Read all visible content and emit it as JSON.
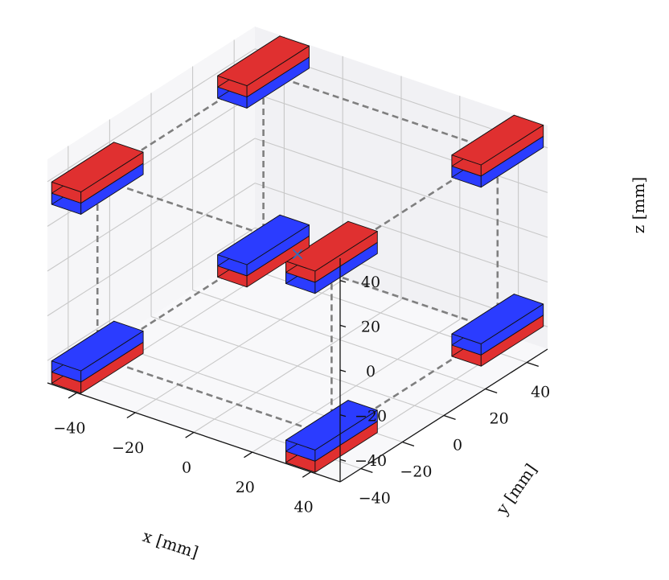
{
  "chart_data": {
    "type": "scatter",
    "projection": "3d",
    "title": "",
    "xlabel": "x [mm]",
    "ylabel": "y [mm]",
    "zlabel": "z [mm]",
    "xlim": [
      -50,
      50
    ],
    "ylim": [
      -50,
      50
    ],
    "zlim": [
      -50,
      50
    ],
    "xticks": [
      -40,
      -20,
      0,
      20,
      40
    ],
    "yticks": [
      -40,
      -20,
      0,
      20,
      40
    ],
    "zticks": [
      -40,
      -20,
      0,
      20,
      40
    ],
    "xtick_labels": [
      "−40",
      "−20",
      "0",
      "20",
      "40"
    ],
    "ytick_labels": [
      "−40",
      "−20",
      "0",
      "20",
      "40"
    ],
    "ztick_labels": [
      "−40",
      "−20",
      "0",
      "20",
      "40"
    ],
    "grid": true,
    "magnet_size": [
      10,
      30,
      10
    ],
    "magnets": [
      {
        "x": -40,
        "y": -40,
        "z": 40,
        "top_color": "#e03030"
      },
      {
        "x": 40,
        "y": -40,
        "z": 40,
        "top_color": "#e03030"
      },
      {
        "x": -40,
        "y": 40,
        "z": 40,
        "top_color": "#e03030"
      },
      {
        "x": 40,
        "y": 40,
        "z": 40,
        "top_color": "#e03030"
      },
      {
        "x": -40,
        "y": -40,
        "z": -40,
        "top_color": "#2b3cff"
      },
      {
        "x": 40,
        "y": -40,
        "z": -40,
        "top_color": "#2b3cff"
      },
      {
        "x": -40,
        "y": 40,
        "z": -40,
        "top_color": "#2b3cff"
      },
      {
        "x": 40,
        "y": 40,
        "z": -40,
        "top_color": "#2b3cff"
      }
    ],
    "center_marker": {
      "x": 0,
      "y": 0,
      "z": 0,
      "symbol": "×",
      "color": "#2f6fbf"
    },
    "colors": {
      "north": "#e03030",
      "south": "#2b3cff",
      "frame": "#7f7f7f"
    }
  }
}
